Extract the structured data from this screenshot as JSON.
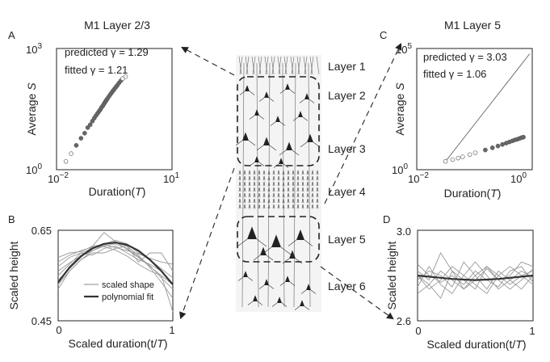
{
  "panels": {
    "A": {
      "letter": "A",
      "title": "M1 Layer 2/3",
      "ylabel_prefix": "Average ",
      "ylabel_var": "S",
      "xlabel_prefix": "Duration(",
      "xlabel_var": "T",
      "xlabel_suffix": ")",
      "ytick_top_base": "10",
      "ytick_top_exp": "3",
      "ytick_bottom_base": "10",
      "ytick_bottom_exp": "0",
      "xtick_left_base": "10",
      "xtick_left_exp": "−2",
      "xtick_right_base": "10",
      "xtick_right_exp": "1",
      "predicted": "predicted γ = 1.29",
      "fitted": "fitted γ = 1.21"
    },
    "B": {
      "letter": "B",
      "ylabel": "Scaled height",
      "xlabel_prefix": "Scaled duration(t/",
      "xlabel_var": "T",
      "xlabel_suffix": ")",
      "ytick_top": "0.65",
      "ytick_bottom": "0.45",
      "xtick_left": "0",
      "xtick_right": "1",
      "legend_shape": "scaled shape",
      "legend_fit": "polynomial fit"
    },
    "C": {
      "letter": "C",
      "title": "M1 Layer 5",
      "ylabel_prefix": "Average ",
      "ylabel_var": "S",
      "xlabel_prefix": "Duration(",
      "xlabel_var": "T",
      "xlabel_suffix": ")",
      "ytick_top_base": "10",
      "ytick_top_exp": "5",
      "ytick_bottom_base": "10",
      "ytick_bottom_exp": "0",
      "xtick_left_base": "10",
      "xtick_left_exp": "−2",
      "xtick_right_base": "10",
      "xtick_right_exp": "0",
      "predicted": "predicted γ = 3.03",
      "fitted": "fitted γ = 1.06"
    },
    "D": {
      "letter": "D",
      "ylabel": "Scaled height",
      "xlabel_prefix": "Scaled duration(t/",
      "xlabel_var": "T",
      "xlabel_suffix": ")",
      "ytick_top": "3.0",
      "ytick_bottom": "2.6",
      "xtick_left": "0",
      "xtick_right": "1"
    }
  },
  "cortex_layers": [
    "Layer 1",
    "Layer 2",
    "Layer 3",
    "Layer 4",
    "Layer 5",
    "Layer 6"
  ],
  "chart_data": [
    {
      "panel": "A",
      "type": "scatter",
      "xscale": "log",
      "yscale": "log",
      "xlim": [
        0.01,
        10
      ],
      "ylim": [
        1,
        1000
      ],
      "points": [
        [
          0.016,
          1.6
        ],
        [
          0.022,
          2.5
        ],
        [
          0.03,
          4
        ],
        [
          0.04,
          6
        ],
        [
          0.05,
          8
        ],
        [
          0.06,
          11
        ],
        [
          0.07,
          13
        ],
        [
          0.08,
          16
        ],
        [
          0.09,
          19
        ],
        [
          0.1,
          22
        ],
        [
          0.11,
          25
        ],
        [
          0.12,
          28
        ],
        [
          0.13,
          31
        ],
        [
          0.14,
          35
        ],
        [
          0.15,
          38
        ],
        [
          0.16,
          42
        ],
        [
          0.17,
          46
        ],
        [
          0.18,
          50
        ],
        [
          0.19,
          54
        ],
        [
          0.2,
          58
        ],
        [
          0.22,
          66
        ],
        [
          0.24,
          74
        ],
        [
          0.26,
          82
        ],
        [
          0.28,
          90
        ],
        [
          0.3,
          98
        ],
        [
          0.33,
          110
        ],
        [
          0.36,
          122
        ],
        [
          0.4,
          140
        ],
        [
          0.45,
          160
        ],
        [
          0.5,
          180
        ]
      ],
      "open_points": [
        [
          0.016,
          1.6
        ],
        [
          0.022,
          2.5
        ],
        [
          0.5,
          180
        ],
        [
          0.6,
          200
        ]
      ],
      "predicted_gamma": 1.29,
      "fitted_gamma": 1.21
    },
    {
      "panel": "B",
      "type": "line",
      "xlim": [
        0,
        1
      ],
      "ylim": [
        0.45,
        0.65
      ],
      "series": [
        {
          "values": [
            0.58,
            0.595,
            0.605,
            0.613,
            0.614,
            0.606,
            0.593,
            0.575,
            0.56,
            0.55,
            0.53
          ]
        },
        {
          "values": [
            0.56,
            0.578,
            0.593,
            0.605,
            0.615,
            0.62,
            0.61,
            0.592,
            0.572,
            0.545,
            0.52
          ]
        },
        {
          "values": [
            0.54,
            0.565,
            0.59,
            0.615,
            0.645,
            0.625,
            0.608,
            0.59,
            0.57,
            0.55,
            0.47
          ]
        },
        {
          "values": [
            0.57,
            0.59,
            0.6,
            0.595,
            0.61,
            0.615,
            0.6,
            0.585,
            0.575,
            0.56,
            0.53
          ]
        },
        {
          "values": [
            0.55,
            0.575,
            0.6,
            0.61,
            0.62,
            0.628,
            0.62,
            0.6,
            0.585,
            0.565,
            0.545
          ]
        },
        {
          "values": [
            0.52,
            0.56,
            0.585,
            0.6,
            0.6,
            0.61,
            0.615,
            0.58,
            0.6,
            0.6,
            0.56
          ]
        },
        {
          "values": [
            0.59,
            0.6,
            0.603,
            0.615,
            0.618,
            0.612,
            0.605,
            0.598,
            0.588,
            0.58,
            0.575
          ]
        },
        {
          "values": [
            0.53,
            0.56,
            0.585,
            0.605,
            0.618,
            0.623,
            0.615,
            0.595,
            0.568,
            0.535,
            0.5
          ]
        }
      ],
      "fit": [
        0.535,
        0.568,
        0.593,
        0.61,
        0.62,
        0.623,
        0.618,
        0.605,
        0.585,
        0.56,
        0.53
      ]
    },
    {
      "panel": "C",
      "type": "scatter",
      "xscale": "log",
      "yscale": "log",
      "xlim": [
        0.01,
        1
      ],
      "ylim": [
        1,
        100000
      ],
      "points": [
        [
          0.03,
          2.2
        ],
        [
          0.04,
          2.6
        ],
        [
          0.05,
          3
        ],
        [
          0.06,
          3.4
        ],
        [
          0.08,
          4.2
        ],
        [
          0.1,
          5
        ],
        [
          0.15,
          6.5
        ],
        [
          0.2,
          8
        ],
        [
          0.25,
          9.5
        ],
        [
          0.3,
          11
        ],
        [
          0.35,
          12.5
        ],
        [
          0.4,
          14
        ],
        [
          0.45,
          15.5
        ],
        [
          0.5,
          17
        ],
        [
          0.55,
          18
        ],
        [
          0.6,
          19.5
        ],
        [
          0.65,
          21
        ],
        [
          0.7,
          22
        ]
      ],
      "open_points": [
        [
          0.03,
          2.2
        ],
        [
          0.04,
          2.6
        ],
        [
          0.05,
          3
        ],
        [
          0.06,
          3.4
        ],
        [
          0.08,
          4.2
        ],
        [
          0.1,
          5
        ]
      ],
      "predicted_line": [
        [
          0.03,
          2.2
        ],
        [
          0.9,
          60000
        ]
      ],
      "predicted_gamma": 3.03,
      "fitted_gamma": 1.06
    },
    {
      "panel": "D",
      "type": "line",
      "xlim": [
        0,
        1
      ],
      "ylim": [
        2.6,
        3.0
      ],
      "series": [
        {
          "values": [
            2.82,
            2.78,
            2.9,
            2.82,
            2.74,
            2.78,
            2.83,
            2.78,
            2.8,
            2.86,
            2.84
          ]
        },
        {
          "values": [
            2.75,
            2.84,
            2.76,
            2.72,
            2.8,
            2.86,
            2.8,
            2.74,
            2.78,
            2.82,
            2.79
          ]
        },
        {
          "values": [
            2.8,
            2.76,
            2.7,
            2.82,
            2.78,
            2.74,
            2.84,
            2.8,
            2.76,
            2.8,
            2.82
          ]
        },
        {
          "values": [
            2.78,
            2.82,
            2.8,
            2.75,
            2.86,
            2.8,
            2.74,
            2.82,
            2.78,
            2.74,
            2.8
          ]
        },
        {
          "values": [
            2.85,
            2.8,
            2.77,
            2.8,
            2.76,
            2.82,
            2.78,
            2.75,
            2.82,
            2.84,
            2.77
          ]
        },
        {
          "values": [
            2.72,
            2.76,
            2.82,
            2.78,
            2.74,
            2.8,
            2.84,
            2.78,
            2.74,
            2.78,
            2.83
          ]
        },
        {
          "values": [
            2.8,
            2.74,
            2.78,
            2.84,
            2.8,
            2.76,
            2.72,
            2.8,
            2.84,
            2.8,
            2.76
          ]
        }
      ],
      "fit": [
        2.8,
        2.795,
        2.79,
        2.785,
        2.782,
        2.78,
        2.782,
        2.785,
        2.79,
        2.795,
        2.8
      ]
    }
  ]
}
